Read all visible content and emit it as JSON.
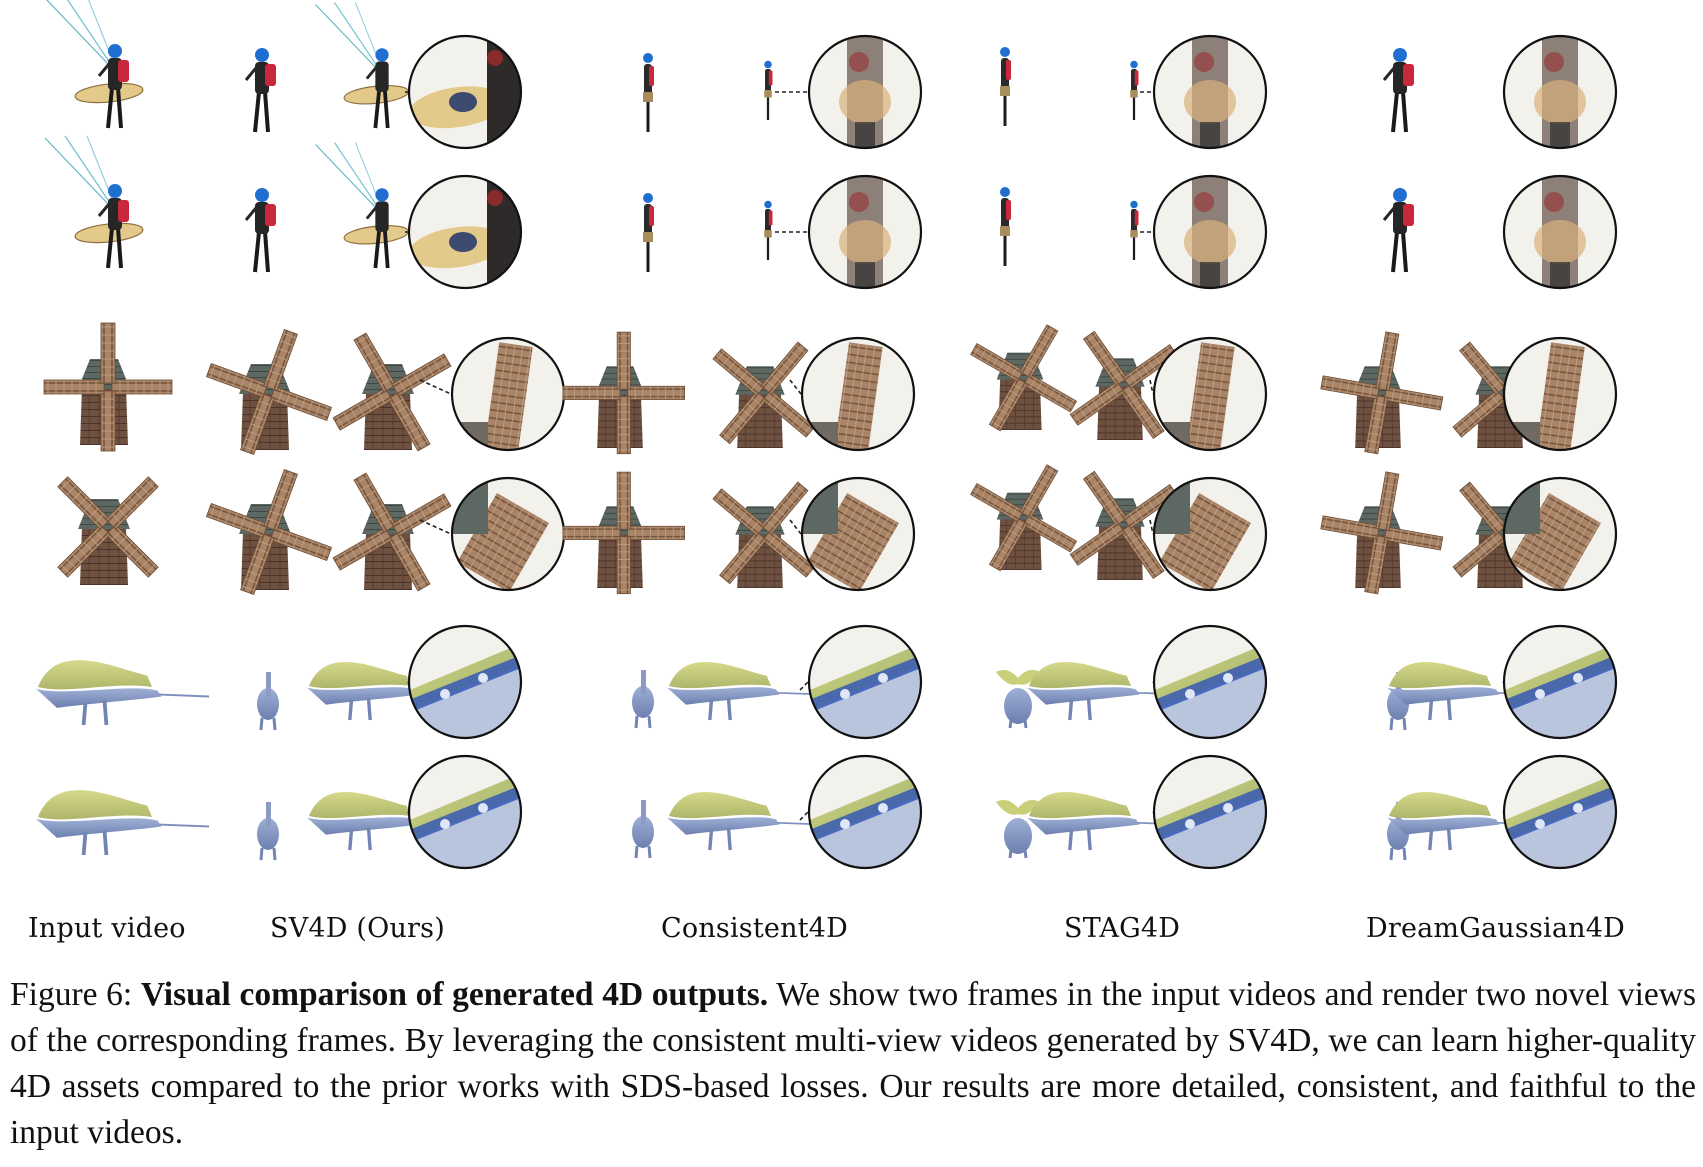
{
  "figure": {
    "columns": [
      {
        "key": "input",
        "label": "Input video"
      },
      {
        "key": "sv4d",
        "label": "SV4D (Ours)"
      },
      {
        "key": "consistent4d",
        "label": "Consistent4D"
      },
      {
        "key": "stag4d",
        "label": "STAG4D"
      },
      {
        "key": "dreamgaussian4d",
        "label": "DreamGaussian4D"
      }
    ],
    "rows": [
      {
        "subject": "paraglider",
        "frame": 1
      },
      {
        "subject": "paraglider",
        "frame": 2
      },
      {
        "subject": "windmill",
        "frame": 1
      },
      {
        "subject": "windmill",
        "frame": 2
      },
      {
        "subject": "dinosaur",
        "frame": 1
      },
      {
        "subject": "dinosaur",
        "frame": 2
      }
    ],
    "colors": {
      "glider_wing": "#e3c98a",
      "helmet": "#1f6fd1",
      "backpack": "#c8283a",
      "wood": "#9a7657",
      "roof": "#5b6660",
      "wall": "#6e5040",
      "dino_body": "#8fa0c8",
      "dino_sail": "#c9cf6a",
      "spot": "#2e52b8"
    }
  },
  "caption": {
    "label": "Figure 6:",
    "title": "Visual comparison of generated 4D outputs.",
    "body": "We show two frames in the input videos and render two novel views of the corresponding frames. By leveraging the consistent multi-view videos generated by SV4D, we can learn higher-quality 4D assets compared to the prior works with SDS-based losses. Our results are more detailed, consistent, and faithful to the input videos."
  }
}
